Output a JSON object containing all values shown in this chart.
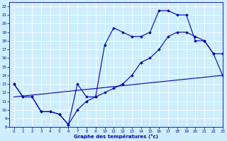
{
  "xlabel": "Graphe des températures (°c)",
  "bg_color": "#cceeff",
  "line_color": "#0000aa",
  "grid_color": "#aadddd",
  "xlim": [
    -0.5,
    23
  ],
  "ylim": [
    8,
    22.5
  ],
  "xticks": [
    0,
    1,
    2,
    3,
    4,
    5,
    6,
    7,
    8,
    9,
    10,
    11,
    12,
    13,
    14,
    15,
    16,
    17,
    18,
    19,
    20,
    21,
    22,
    23
  ],
  "yticks": [
    8,
    9,
    10,
    11,
    12,
    13,
    14,
    15,
    16,
    17,
    18,
    19,
    20,
    21,
    22
  ],
  "curve1_x": [
    0,
    1,
    2,
    3,
    4,
    5,
    6,
    7,
    8,
    9,
    10,
    11,
    12,
    13,
    14,
    15,
    16,
    17,
    18,
    19,
    20,
    21,
    22,
    23
  ],
  "curve1_y": [
    13.0,
    11.5,
    11.5,
    9.8,
    9.8,
    9.5,
    8.3,
    13.0,
    11.5,
    11.5,
    17.5,
    19.5,
    19.0,
    18.5,
    18.5,
    19.0,
    21.5,
    21.5,
    21.0,
    21.0,
    18.0,
    18.0,
    16.5,
    16.5
  ],
  "curve2_x": [
    0,
    1,
    2,
    3,
    4,
    5,
    6,
    7,
    8,
    9,
    10,
    11,
    12,
    13,
    14,
    15,
    16,
    17,
    18,
    19,
    20,
    21,
    22,
    23
  ],
  "curve2_y": [
    13.0,
    11.5,
    11.5,
    9.8,
    9.8,
    9.5,
    8.3,
    10.0,
    11.0,
    11.5,
    12.0,
    12.5,
    13.0,
    14.0,
    15.5,
    16.0,
    17.0,
    18.5,
    19.0,
    19.0,
    18.5,
    18.0,
    16.5,
    14.0
  ],
  "curve3_x": [
    0,
    23
  ],
  "curve3_y": [
    11.5,
    14.0
  ]
}
